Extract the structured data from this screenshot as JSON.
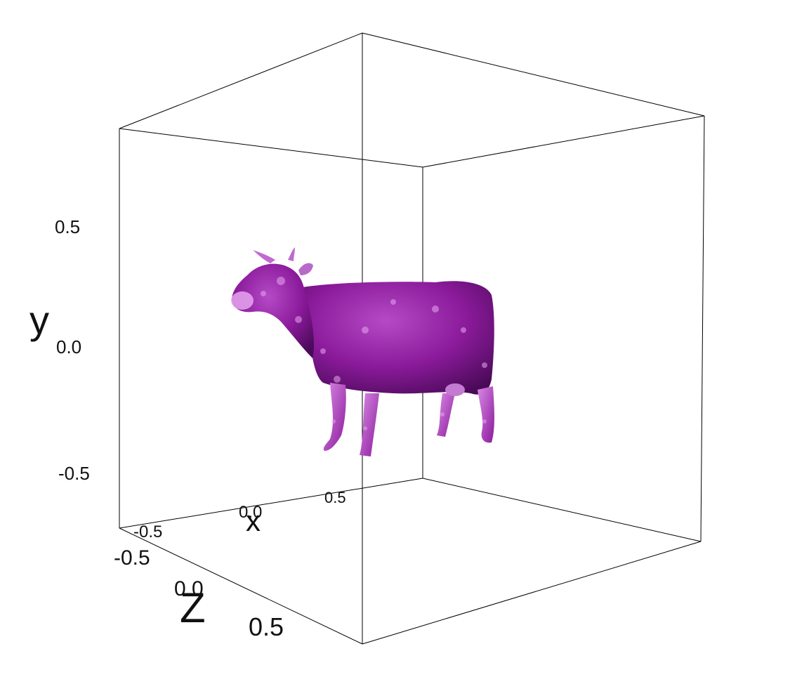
{
  "chart_data": {
    "type": "surface3d",
    "title": "",
    "model": "cow",
    "colors": {
      "surface": "#8a1a9a",
      "highlight": "#e6a6f0",
      "shadow": "#4a0a58",
      "frame": "#000000"
    },
    "axes": {
      "x": {
        "label": "x",
        "ticks": [
          "-0.5",
          "0.0",
          "0.5"
        ]
      },
      "y": {
        "label": "y",
        "ticks": [
          "0.5",
          "0.0",
          "-0.5"
        ]
      },
      "z": {
        "label": "Z",
        "ticks": [
          "-0.5",
          "0.0",
          "0.5"
        ]
      }
    },
    "grid": false,
    "legend": "none"
  }
}
